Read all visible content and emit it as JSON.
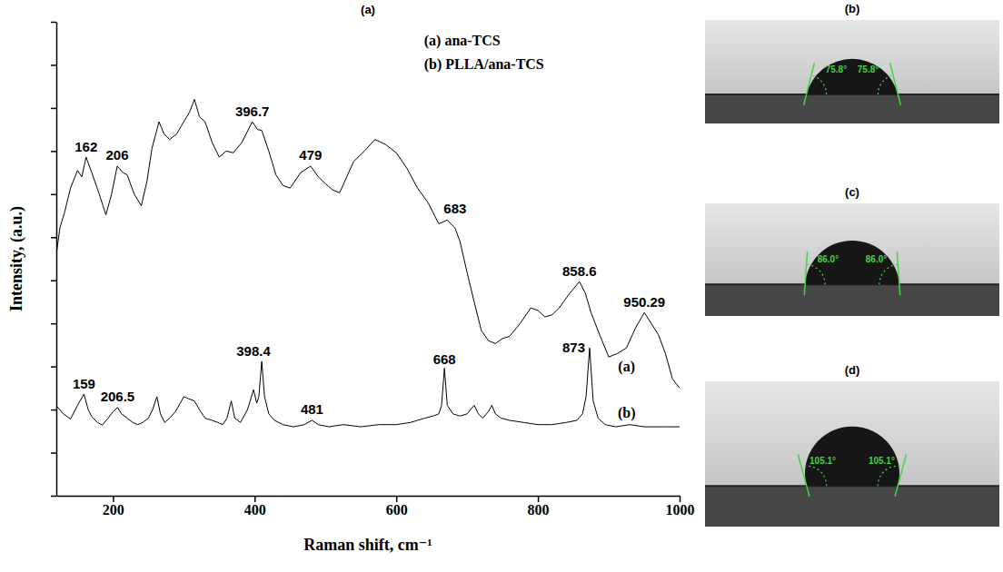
{
  "chart_data": {
    "type": "line",
    "title": "(a)",
    "x_label": "Raman shift, cm⁻¹",
    "y_label": "Intensity, (a.u.)",
    "xlim": [
      120,
      1000
    ],
    "xticks": [
      200,
      400,
      600,
      800,
      1000
    ],
    "ylim": [
      10,
      120
    ],
    "yticks": [
      10,
      20,
      30,
      40,
      50,
      60,
      70,
      80,
      90,
      100,
      110,
      120
    ],
    "tick_labels": "x",
    "legend": "upper right",
    "color": "#000000",
    "series": [
      {
        "name": "ana-TCS",
        "tag": "(a)",
        "color": "#000000",
        "x": [
          120,
          125,
          132,
          140,
          150,
          156,
          162,
          170,
          180,
          190,
          198,
          206,
          214,
          220,
          230,
          240,
          248,
          255,
          265,
          272,
          280,
          290,
          300,
          308,
          315,
          322,
          330,
          340,
          350,
          360,
          370,
          382,
          396.7,
          404,
          410,
          420,
          430,
          440,
          450,
          465,
          479,
          490,
          500,
          510,
          520,
          530,
          540,
          555,
          570,
          585,
          600,
          615,
          630,
          645,
          660,
          672,
          683,
          690,
          700,
          710,
          720,
          730,
          740,
          750,
          760,
          775,
          790,
          800,
          810,
          820,
          830,
          845,
          858.6,
          867,
          875,
          888,
          900,
          912,
          925,
          938,
          950.29,
          960,
          970,
          980,
          990,
          1000
        ],
        "values": [
          66,
          72.1,
          76,
          81.4,
          85.5,
          84,
          88.6,
          85,
          80.3,
          75.2,
          80,
          86.5,
          85,
          84.5,
          80,
          77.3,
          83,
          90.6,
          96.8,
          94,
          92.7,
          94,
          96.8,
          99,
          102,
          98,
          96.8,
          92,
          88.6,
          90,
          89.6,
          92,
          96.8,
          95,
          94.8,
          90,
          84.5,
          82,
          81.4,
          85,
          86.5,
          84,
          82.4,
          81,
          80.3,
          84,
          87.6,
          90,
          92.7,
          91.5,
          89.6,
          86,
          81.4,
          78,
          73.1,
          74,
          72.1,
          69,
          61.8,
          55,
          48.4,
          46,
          45.3,
          46.5,
          47,
          50,
          53.6,
          53,
          51.5,
          52,
          53.6,
          57,
          59.7,
          57,
          52.5,
          47,
          42.2,
          43,
          44.3,
          49,
          52.5,
          50,
          47.4,
          43,
          37.1,
          35
        ]
      },
      {
        "name": "PLLA/ana-TCS",
        "tag": "(b)",
        "color": "#000000",
        "x": [
          120,
          130,
          140,
          150,
          159,
          165,
          170,
          178,
          185,
          193,
          200,
          206.5,
          212,
          220,
          228,
          235,
          242,
          250,
          256,
          262,
          267,
          273,
          280,
          288,
          295,
          300,
          307,
          315,
          322,
          330,
          340,
          348,
          355,
          361,
          367,
          372,
          380,
          390,
          398.4,
          403,
          406,
          410,
          414,
          420,
          428,
          440,
          455,
          470,
          481,
          490,
          505,
          525,
          550,
          575,
          600,
          620,
          640,
          652,
          660,
          664,
          668,
          672,
          680,
          690,
          700,
          710,
          716,
          722,
          730,
          735,
          740,
          748,
          760,
          780,
          800,
          820,
          840,
          855,
          863,
          868,
          873,
          878,
          885,
          895,
          910,
          930,
          950,
          975,
          1000
        ],
        "values": [
          30.9,
          29,
          27.8,
          31,
          33.6,
          30,
          28.4,
          27,
          26.4,
          28,
          29.5,
          30.5,
          29,
          28,
          27,
          26.5,
          27,
          28,
          30,
          33,
          29,
          27,
          28,
          29.5,
          31.5,
          33,
          32.5,
          32,
          30,
          28,
          27.5,
          27,
          26.5,
          28,
          32,
          28,
          27,
          30,
          34.6,
          31.5,
          33,
          41.2,
          33,
          29,
          27.5,
          26.5,
          26,
          26.5,
          27.5,
          26.5,
          26,
          26.5,
          26,
          26.5,
          26.5,
          27,
          28,
          28.5,
          29,
          31,
          39.6,
          31,
          29,
          28.5,
          29,
          31,
          29,
          28,
          29.5,
          31,
          29,
          28,
          27.5,
          27,
          26.5,
          26.5,
          27,
          27.5,
          29,
          33,
          44.3,
          32,
          28,
          26.5,
          26,
          26.5,
          26,
          26,
          26
        ]
      }
    ],
    "annotations": [
      {
        "text": "162",
        "x": 162,
        "series": 0
      },
      {
        "text": "206",
        "x": 206,
        "series": 0
      },
      {
        "text": "396.7",
        "x": 396.7,
        "series": 0
      },
      {
        "text": "479",
        "x": 479,
        "series": 0
      },
      {
        "text": "683",
        "x": 683,
        "series": 0
      },
      {
        "text": "858.6",
        "x": 858.6,
        "series": 0
      },
      {
        "text": "950.29",
        "x": 950.29,
        "series": 0
      },
      {
        "text": "159",
        "x": 159,
        "series": 1
      },
      {
        "text": "206.5",
        "x": 206.5,
        "series": 1
      },
      {
        "text": "398.4",
        "x": 398.4,
        "series": 1
      },
      {
        "text": "481",
        "x": 481,
        "series": 1
      },
      {
        "text": "668",
        "x": 668,
        "series": 1
      },
      {
        "text": "873",
        "x": 873,
        "series": 1
      }
    ]
  },
  "contact_angles": [
    {
      "panel": "(b)",
      "angle": 75.8,
      "angle_label": "75.8°"
    },
    {
      "panel": "(c)",
      "angle": 86.0,
      "angle_label": "86.0°"
    },
    {
      "panel": "(d)",
      "angle": 105.1,
      "angle_label": "105.1°"
    }
  ]
}
